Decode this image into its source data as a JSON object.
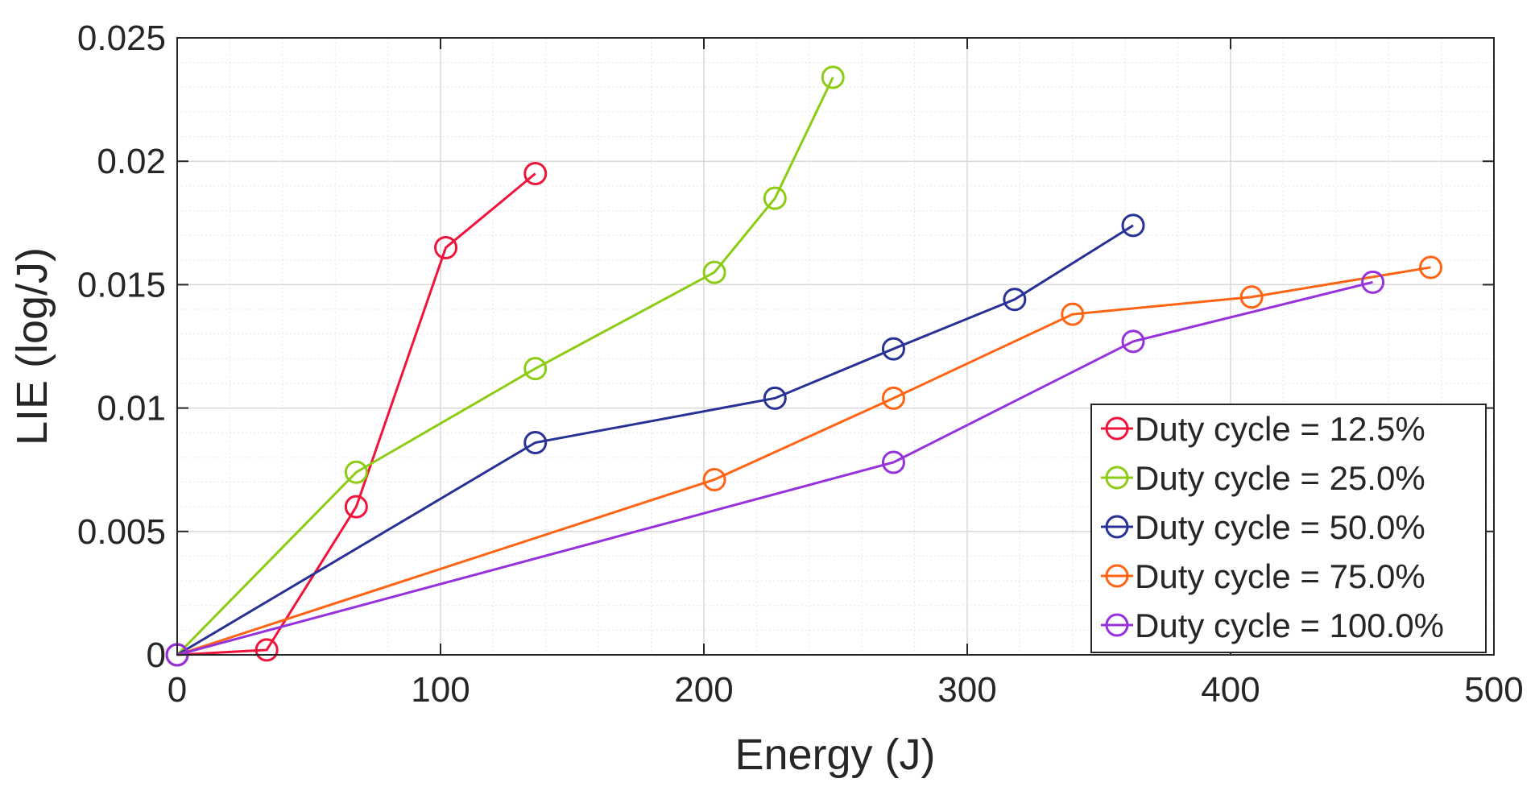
{
  "chart_data": {
    "type": "line",
    "title": "",
    "xlabel": "Energy (J)",
    "ylabel": "LIE (log/J)",
    "xlim": [
      0,
      500
    ],
    "ylim": [
      0,
      0.025
    ],
    "xticks": [
      0,
      100,
      200,
      300,
      400,
      500
    ],
    "yticks": [
      0,
      0.005,
      0.01,
      0.015,
      0.02,
      0.025
    ],
    "xtick_labels": [
      "0",
      "100",
      "200",
      "300",
      "400",
      "500"
    ],
    "ytick_labels": [
      "0",
      "0.005",
      "0.01",
      "0.015",
      "0.02",
      "0.025"
    ],
    "grid": true,
    "minor_grid": true,
    "legend_position": "bottom-right",
    "series": [
      {
        "name": "Duty cycle = 12.5%",
        "color": "#f0143c",
        "x": [
          0,
          34,
          68,
          102,
          136
        ],
        "y": [
          0,
          0.0002,
          0.006,
          0.0165,
          0.0195
        ]
      },
      {
        "name": "Duty cycle = 25.0%",
        "color": "#8ccc14",
        "x": [
          0,
          68,
          136,
          204,
          227,
          249
        ],
        "y": [
          0,
          0.0074,
          0.0116,
          0.0155,
          0.0185,
          0.0234
        ]
      },
      {
        "name": "Duty cycle = 50.0%",
        "color": "#283296",
        "x": [
          0,
          136,
          227,
          272,
          318,
          363
        ],
        "y": [
          0,
          0.0086,
          0.0104,
          0.0124,
          0.0144,
          0.0174
        ]
      },
      {
        "name": "Duty cycle = 75.0%",
        "color": "#ff6414",
        "x": [
          0,
          204,
          272,
          340,
          408,
          476
        ],
        "y": [
          0,
          0.0071,
          0.0104,
          0.0138,
          0.0145,
          0.0157
        ]
      },
      {
        "name": "Duty cycle = 100.0%",
        "color": "#9632dc",
        "x": [
          0,
          272,
          363,
          454
        ],
        "y": [
          0,
          0.0078,
          0.0127,
          0.0151
        ]
      }
    ]
  }
}
